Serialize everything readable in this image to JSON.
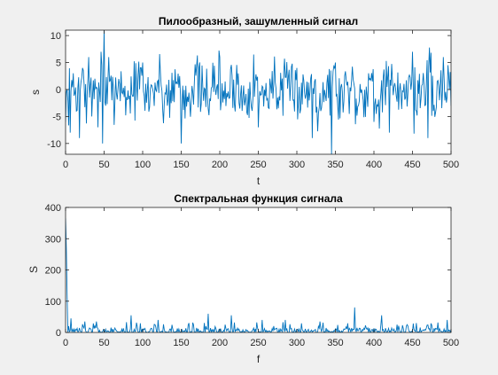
{
  "chart_data": [
    {
      "type": "line",
      "title": "Пилообразный, зашумленный сигнал",
      "xlabel": "t",
      "ylabel": "s",
      "xlim": [
        0,
        500
      ],
      "ylim": [
        -12,
        11
      ],
      "xticks": [
        "0",
        "50",
        "100",
        "150",
        "200",
        "250",
        "300",
        "350",
        "400",
        "450",
        "500"
      ],
      "yticks": [
        "-10",
        "-5",
        "0",
        "5",
        "10"
      ],
      "grid": false,
      "line_color": "#0072bd",
      "noise_seed": 7,
      "points_estimated": [
        [
          0,
          -6
        ],
        [
          3,
          -2
        ],
        [
          6,
          -8
        ],
        [
          10,
          3
        ],
        [
          14,
          -4
        ],
        [
          18,
          -9
        ],
        [
          22,
          4
        ],
        [
          26,
          1
        ],
        [
          30,
          6
        ],
        [
          34,
          -5
        ],
        [
          38,
          2
        ],
        [
          42,
          -7
        ],
        [
          46,
          7
        ],
        [
          48,
          -10
        ],
        [
          50,
          11
        ],
        [
          52,
          -3
        ],
        [
          56,
          6
        ],
        [
          60,
          -2
        ],
        [
          100,
          5
        ],
        [
          150,
          -10
        ],
        [
          200,
          6
        ],
        [
          250,
          -7
        ],
        [
          300,
          4
        ],
        [
          320,
          -9
        ],
        [
          345,
          -12
        ],
        [
          350,
          5
        ],
        [
          400,
          -6
        ],
        [
          420,
          -8
        ],
        [
          450,
          7
        ],
        [
          470,
          -9
        ],
        [
          490,
          6
        ],
        [
          500,
          -3
        ]
      ]
    },
    {
      "type": "line",
      "title": "Спектральная функция сигнала",
      "xlabel": "f",
      "ylabel": "S",
      "xlim": [
        0,
        500
      ],
      "ylim": [
        0,
        400
      ],
      "xticks": [
        "0",
        "50",
        "100",
        "150",
        "200",
        "250",
        "300",
        "350",
        "400",
        "450",
        "500"
      ],
      "yticks": [
        "0",
        "100",
        "200",
        "300",
        "400"
      ],
      "grid": false,
      "line_color": "#0072bd",
      "noise_seed": 13,
      "peaks_estimated": [
        [
          0,
          365
        ],
        [
          1,
          270
        ],
        [
          2,
          120
        ],
        [
          4,
          20
        ],
        [
          7,
          45
        ],
        [
          25,
          35
        ],
        [
          40,
          35
        ],
        [
          85,
          55
        ],
        [
          120,
          40
        ],
        [
          160,
          30
        ],
        [
          185,
          60
        ],
        [
          215,
          55
        ],
        [
          255,
          40
        ],
        [
          285,
          40
        ],
        [
          330,
          35
        ],
        [
          375,
          80
        ],
        [
          410,
          55
        ],
        [
          455,
          30
        ],
        [
          495,
          40
        ],
        [
          500,
          10
        ]
      ]
    }
  ]
}
